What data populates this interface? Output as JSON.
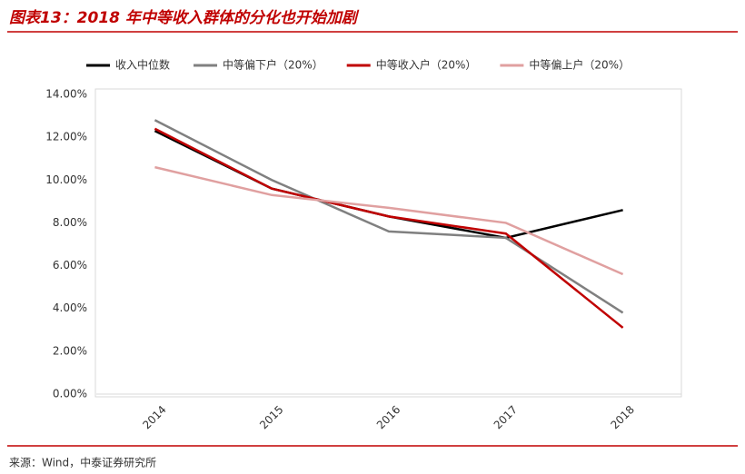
{
  "chart_data": {
    "type": "line",
    "title": "图表13：2018 年中等收入群体的分化也开始加剧",
    "source": "来源：Wind，中泰证券研究所",
    "categories": [
      "2014",
      "2015",
      "2016",
      "2017",
      "2018"
    ],
    "series": [
      {
        "name": "收入中位数",
        "color": "#000000",
        "values": [
          12.3,
          9.6,
          8.3,
          7.3,
          8.6
        ]
      },
      {
        "name": "中等偏下户（20%）",
        "color": "#808080",
        "values": [
          12.8,
          10.0,
          7.6,
          7.3,
          3.8
        ]
      },
      {
        "name": "中等收入户（20%）",
        "color": "#c00000",
        "values": [
          12.4,
          9.6,
          8.3,
          7.5,
          3.1
        ]
      },
      {
        "name": "中等偏上户（20%）",
        "color": "#e0a0a0",
        "values": [
          10.6,
          9.3,
          8.7,
          8.0,
          5.6
        ]
      }
    ],
    "ylim": [
      0,
      14
    ],
    "yticks": [
      {
        "value": 0,
        "label": "0.00%"
      },
      {
        "value": 2,
        "label": "2.00%"
      },
      {
        "value": 4,
        "label": "4.00%"
      },
      {
        "value": 6,
        "label": "6.00%"
      },
      {
        "value": 8,
        "label": "8.00%"
      },
      {
        "value": 10,
        "label": "10.00%"
      },
      {
        "value": 12,
        "label": "12.00%"
      },
      {
        "value": 14,
        "label": "14.00%"
      }
    ]
  }
}
